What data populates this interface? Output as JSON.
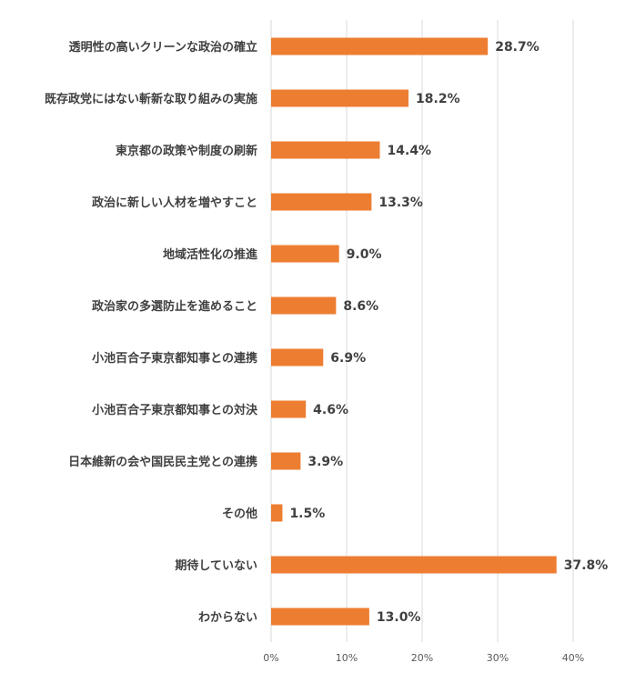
{
  "chart_data": {
    "type": "bar",
    "orientation": "horizontal",
    "categories": [
      "透明性の高いクリーンな政治の確立",
      "既存政党にはない斬新な取り組みの実施",
      "東京都の政策や制度の刷新",
      "政治に新しい人材を増やすこと",
      "地域活性化の推進",
      "政治家の多選防止を進めること",
      "小池百合子東京都知事との連携",
      "小池百合子東京都知事との対決",
      "日本維新の会や国民民主党との連携",
      "その他",
      "期待していない",
      "わからない"
    ],
    "values": [
      28.7,
      18.2,
      14.4,
      13.3,
      9.0,
      8.6,
      6.9,
      4.6,
      3.9,
      1.5,
      37.8,
      13.0
    ],
    "data_labels": [
      "28.7%",
      "18.2%",
      "14.4%",
      "13.3%",
      "9.0%",
      "8.6%",
      "6.9%",
      "4.6%",
      "3.9%",
      "1.5%",
      "37.8%",
      "13.0%"
    ],
    "xlim": [
      0,
      40
    ],
    "xticks": [
      0,
      10,
      20,
      30,
      40
    ],
    "xtick_labels": [
      "0%",
      "10%",
      "20%",
      "30%",
      "40%"
    ],
    "grid": true,
    "legend": "none",
    "bar_color": "#ED7D31",
    "grid_color": "#D9D9D9"
  }
}
